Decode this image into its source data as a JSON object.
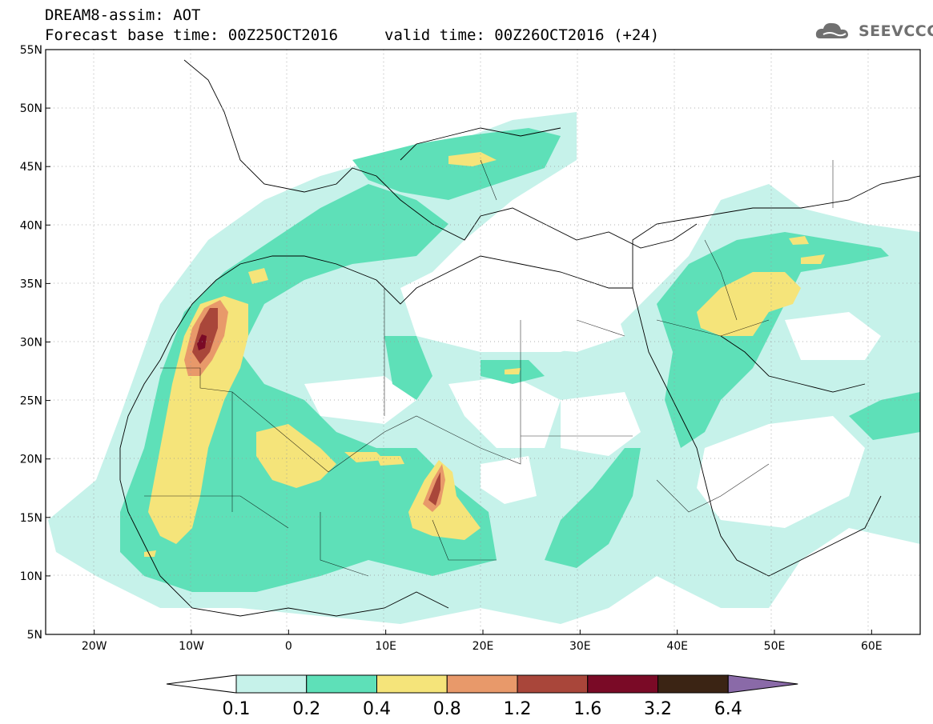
{
  "header": {
    "title": "DREAM8-assim: AOT",
    "base_time": "Forecast base time: 00Z25OCT2016",
    "valid_time": "valid time: 00Z26OCT2016 (+24)",
    "logo_text": "SEEVCCC"
  },
  "map": {
    "lat_labels": [
      "55N",
      "50N",
      "45N",
      "40N",
      "35N",
      "30N",
      "25N",
      "20N",
      "15N",
      "10N",
      "5N"
    ],
    "lon_labels": [
      "20W",
      "10W",
      "0",
      "10E",
      "20E",
      "30E",
      "40E",
      "50E",
      "60E"
    ],
    "lat_range": [
      5,
      55
    ],
    "lon_range": [
      -25,
      65
    ],
    "grid": "dotted"
  },
  "legend": {
    "labels": [
      "0.1",
      "0.2",
      "0.4",
      "0.8",
      "1.2",
      "1.6",
      "3.2",
      "6.4"
    ],
    "colors": [
      "#ffffff",
      "#c6f2ea",
      "#5ee0b8",
      "#f5e47a",
      "#e8996a",
      "#a9463a",
      "#7a0a26",
      "#3b2414",
      "#8a6aa8"
    ]
  }
}
